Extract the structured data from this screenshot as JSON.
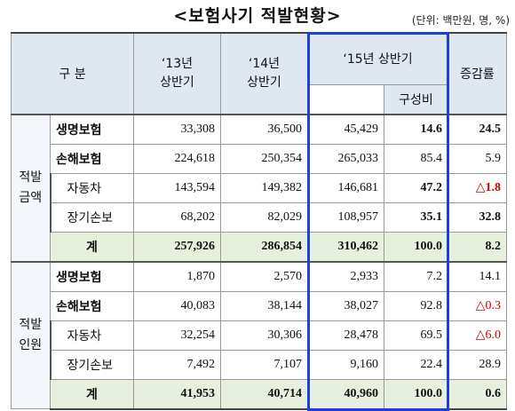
{
  "title": "<보험사기 적발현황>",
  "unit": "(단위: 백만원, 명, %)",
  "headers": {
    "category": "구  분",
    "y13": "‘13년\n상반기",
    "y14": "‘14년\n상반기",
    "y15": "‘15년 상반기",
    "share": "구성비",
    "change": "증감률"
  },
  "sections": [
    {
      "label": "적발\n금액",
      "rows": [
        {
          "name": "생명보험",
          "y13": "33,308",
          "y14": "36,500",
          "y15": "45,429",
          "share": "14.6",
          "change": "24.5",
          "bold_name": true,
          "bold_share": true,
          "bold_change": true
        },
        {
          "name": "손해보험",
          "y13": "224,618",
          "y14": "250,354",
          "y15": "265,033",
          "share": "85.4",
          "change": "5.9",
          "bold_name": true
        },
        {
          "name": "자동차",
          "y13": "143,594",
          "y14": "149,382",
          "y15": "146,681",
          "share": "47.2",
          "change": "△1.8",
          "sub": true,
          "bold_share": true,
          "bold_change": true,
          "red": true
        },
        {
          "name": "장기손보",
          "y13": "68,202",
          "y14": "82,029",
          "y15": "108,957",
          "share": "35.1",
          "change": "32.8",
          "sub": true,
          "bold_share": true,
          "bold_change": true
        }
      ],
      "total": {
        "name": "계",
        "y13": "257,926",
        "y14": "286,854",
        "y15": "310,462",
        "share": "100.0",
        "change": "8.2"
      }
    },
    {
      "label": "적발\n인원",
      "rows": [
        {
          "name": "생명보험",
          "y13": "1,870",
          "y14": "2,570",
          "y15": "2,933",
          "share": "7.2",
          "change": "14.1",
          "bold_name": true
        },
        {
          "name": "손해보험",
          "y13": "40,083",
          "y14": "38,144",
          "y15": "38,027",
          "share": "92.8",
          "change": "△0.3",
          "bold_name": true,
          "red": true
        },
        {
          "name": "자동차",
          "y13": "32,254",
          "y14": "30,306",
          "y15": "28,478",
          "share": "69.5",
          "change": "△6.0",
          "sub": true,
          "red": true
        },
        {
          "name": "장기손보",
          "y13": "7,492",
          "y14": "7,107",
          "y15": "9,160",
          "share": "22.4",
          "change": "28.9",
          "sub": true
        }
      ],
      "total": {
        "name": "계",
        "y13": "41,953",
        "y14": "40,714",
        "y15": "40,960",
        "share": "100.0",
        "change": "0.6"
      }
    }
  ]
}
